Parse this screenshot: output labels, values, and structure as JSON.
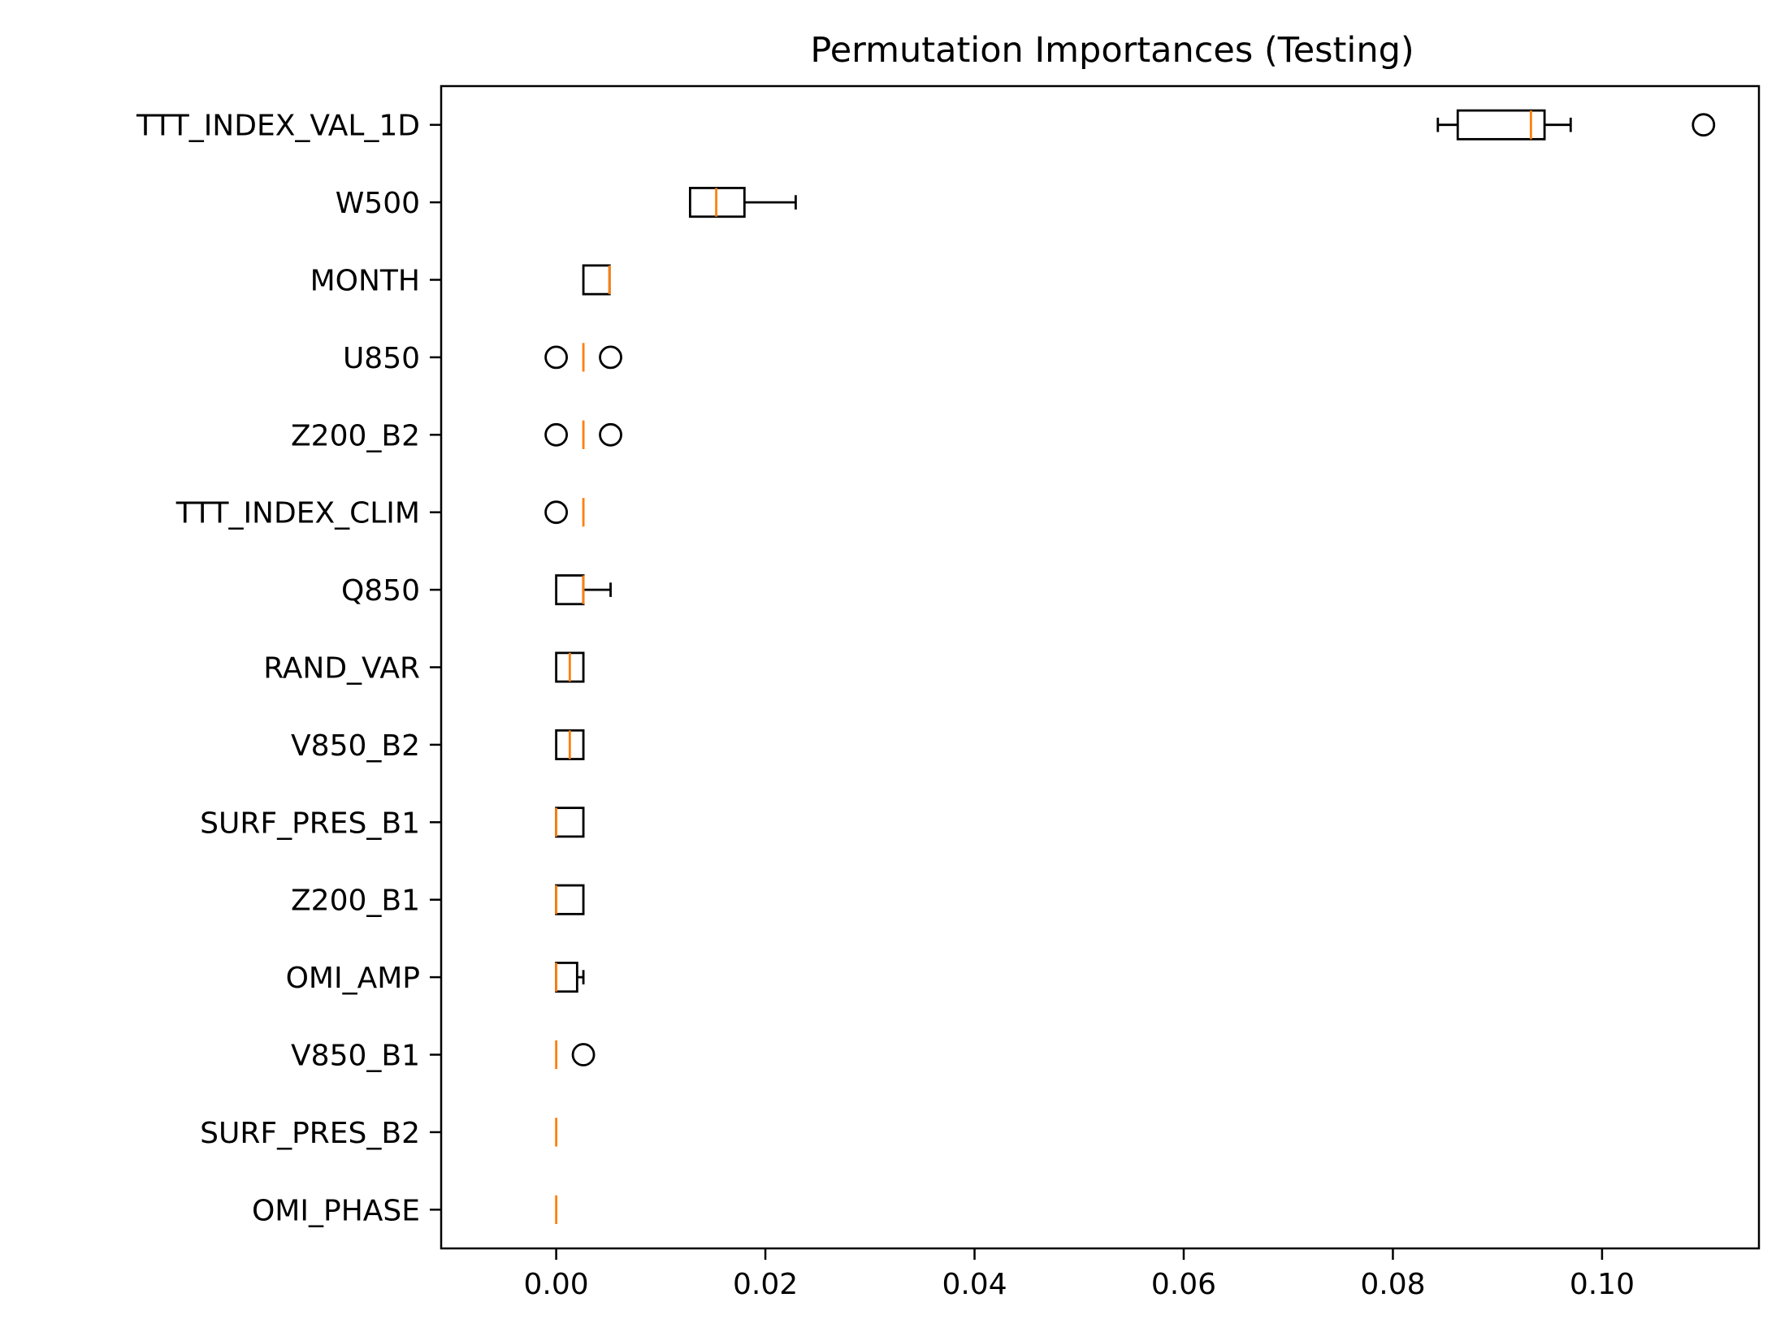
{
  "chart_data": {
    "type": "boxplot",
    "orientation": "horizontal",
    "title": "Permutation Importances (Testing)",
    "xlabel": "",
    "ylabel": "",
    "xlim": [
      -0.011,
      0.115
    ],
    "xticks": [
      0.0,
      0.02,
      0.04,
      0.06,
      0.08,
      0.1
    ],
    "xtick_labels": [
      "0.00",
      "0.02",
      "0.04",
      "0.06",
      "0.08",
      "0.10"
    ],
    "grid": false,
    "legend": "none",
    "colors": {
      "box": "#000000",
      "median": "#ff7f0e",
      "background": "#ffffff"
    },
    "categories": [
      "TTT_INDEX_VAL_1D",
      "W500",
      "MONTH",
      "U850",
      "Z200_B2",
      "TTT_INDEX_CLIM",
      "Q850",
      "RAND_VAR",
      "V850_B2",
      "SURF_PRES_B1",
      "Z200_B1",
      "OMI_AMP",
      "V850_B1",
      "SURF_PRES_B2",
      "OMI_PHASE"
    ],
    "boxes": [
      {
        "label": "TTT_INDEX_VAL_1D",
        "whisker_low": 0.0843,
        "q1": 0.0862,
        "median": 0.0932,
        "q3": 0.0945,
        "whisker_high": 0.097,
        "outliers": [
          0.1097
        ]
      },
      {
        "label": "W500",
        "whisker_low": 0.0128,
        "q1": 0.0128,
        "median": 0.0153,
        "q3": 0.018,
        "whisker_high": 0.0229,
        "outliers": []
      },
      {
        "label": "MONTH",
        "whisker_low": 0.0026,
        "q1": 0.0026,
        "median": 0.0051,
        "q3": 0.0051,
        "whisker_high": 0.0051,
        "outliers": []
      },
      {
        "label": "U850",
        "whisker_low": 0.0026,
        "q1": 0.0026,
        "median": 0.0026,
        "q3": 0.0026,
        "whisker_high": 0.0026,
        "outliers": [
          0.0,
          0.0052
        ]
      },
      {
        "label": "Z200_B2",
        "whisker_low": 0.0026,
        "q1": 0.0026,
        "median": 0.0026,
        "q3": 0.0026,
        "whisker_high": 0.0026,
        "outliers": [
          0.0,
          0.0052
        ]
      },
      {
        "label": "TTT_INDEX_CLIM",
        "whisker_low": 0.0026,
        "q1": 0.0026,
        "median": 0.0026,
        "q3": 0.0026,
        "whisker_high": 0.0026,
        "outliers": [
          0.0
        ]
      },
      {
        "label": "Q850",
        "whisker_low": 0.0,
        "q1": 0.0,
        "median": 0.0026,
        "q3": 0.0026,
        "whisker_high": 0.0052,
        "outliers": []
      },
      {
        "label": "RAND_VAR",
        "whisker_low": 0.0,
        "q1": 0.0,
        "median": 0.0013,
        "q3": 0.0026,
        "whisker_high": 0.0026,
        "outliers": []
      },
      {
        "label": "V850_B2",
        "whisker_low": 0.0,
        "q1": 0.0,
        "median": 0.0013,
        "q3": 0.0026,
        "whisker_high": 0.0026,
        "outliers": []
      },
      {
        "label": "SURF_PRES_B1",
        "whisker_low": 0.0,
        "q1": 0.0,
        "median": 0.0,
        "q3": 0.0026,
        "whisker_high": 0.0026,
        "outliers": []
      },
      {
        "label": "Z200_B1",
        "whisker_low": 0.0,
        "q1": 0.0,
        "median": 0.0,
        "q3": 0.0026,
        "whisker_high": 0.0026,
        "outliers": []
      },
      {
        "label": "OMI_AMP",
        "whisker_low": 0.0,
        "q1": 0.0,
        "median": 0.0,
        "q3": 0.002,
        "whisker_high": 0.0026,
        "outliers": []
      },
      {
        "label": "V850_B1",
        "whisker_low": 0.0,
        "q1": 0.0,
        "median": 0.0,
        "q3": 0.0,
        "whisker_high": 0.0,
        "outliers": [
          0.0026
        ]
      },
      {
        "label": "SURF_PRES_B2",
        "whisker_low": 0.0,
        "q1": 0.0,
        "median": 0.0,
        "q3": 0.0,
        "whisker_high": 0.0,
        "outliers": []
      },
      {
        "label": "OMI_PHASE",
        "whisker_low": 0.0,
        "q1": 0.0,
        "median": 0.0,
        "q3": 0.0,
        "whisker_high": 0.0,
        "outliers": []
      }
    ]
  }
}
